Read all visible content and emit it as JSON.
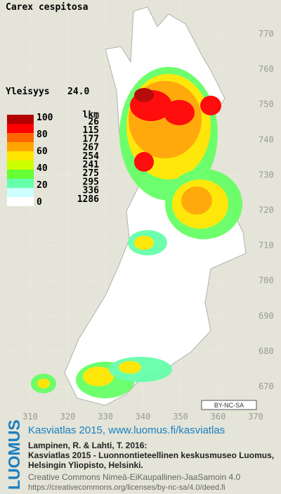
{
  "title": "Carex cespitosa",
  "frequency": {
    "label": "Yleisyys",
    "value": "24.0"
  },
  "legend": {
    "scale_labels": [
      100,
      80,
      60,
      40,
      20,
      0
    ],
    "count_header": "lkm",
    "classes": [
      {
        "color": "#b30000",
        "count": 26
      },
      {
        "color": "#ff0000",
        "count": 115
      },
      {
        "color": "#ff6600",
        "count": 177
      },
      {
        "color": "#ffa500",
        "count": 267
      },
      {
        "color": "#ffe600",
        "count": 254
      },
      {
        "color": "#ccff00",
        "count": 241
      },
      {
        "color": "#66ff33",
        "count": 275
      },
      {
        "color": "#66ffaa",
        "count": 295
      },
      {
        "color": "#ccffff",
        "count": 336
      },
      {
        "color": "#ffffff",
        "count": 1286
      }
    ]
  },
  "map": {
    "yticks": [
      770,
      760,
      750,
      740,
      730,
      720,
      710,
      700,
      690,
      680,
      670
    ],
    "xticks": [
      310,
      320,
      330,
      340,
      350,
      360,
      370
    ],
    "license_badge": "BY-NC-SA"
  },
  "footer": {
    "logo": "LUOMUS",
    "heading": "Kasviatlas 2015, www.luomus.fi/kasviatlas",
    "citation": [
      "Lampinen, R. & Lahti, T. 2016:",
      "Kasviatlas 2015 - Luonnontieteellinen keskusmuseo Luomus,",
      "Helsingin Yliopisto, Helsinki."
    ],
    "license": [
      "Creative Commons Nimeä-EiKaupallinen-JaaSamoin 4.0",
      "https://creativecommons.org/licenses/by-nc-sa/4.0/deed.fi"
    ]
  }
}
